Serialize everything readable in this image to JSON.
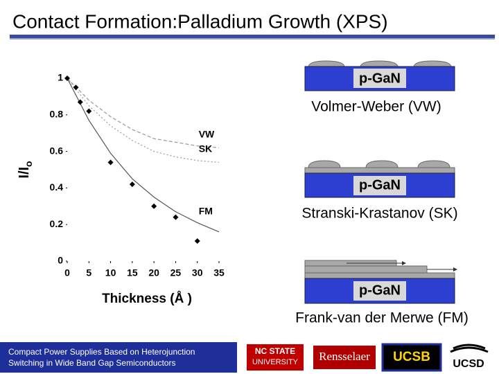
{
  "slide": {
    "title": "Contact Formation:Palladium Growth (XPS)",
    "diagrams": [
      {
        "substrate": "p-GaN",
        "caption": "Volmer-Weber (VW)"
      },
      {
        "substrate": "p-GaN",
        "caption": "Stranski-Krastanov (SK)"
      },
      {
        "substrate": "p-GaN",
        "caption": "Frank-van der Merwe (FM)"
      }
    ],
    "footer": {
      "project": [
        "Compact Power Supplies Based on Heterojunction",
        "Switching in Wide Band Gap Semiconductors"
      ],
      "logos": [
        "NC STATE",
        "UNIVERSITY",
        "Rensselaer",
        "UCSB",
        "UCSD"
      ]
    }
  },
  "chart_data": {
    "type": "scatter",
    "xlabel": "Thickness (Å )",
    "ylabel": "I/I",
    "ylabel_sub": "o",
    "x": [
      0,
      2,
      3,
      5,
      10,
      15,
      20,
      25,
      30
    ],
    "values": [
      1,
      0.95,
      0.87,
      0.82,
      0.54,
      0.42,
      0.3,
      0.24,
      0.11
    ],
    "color": "#000000",
    "curve_x": [
      0,
      5,
      10,
      15,
      20,
      25,
      30,
      35
    ],
    "series": [
      {
        "name": "VW",
        "color": "#999999",
        "style": "dashed",
        "values": [
          1,
          0.88,
          0.79,
          0.72,
          0.67,
          0.65,
          0.63,
          0.62
        ]
      },
      {
        "name": "SK",
        "color": "#999999",
        "style": "dotted",
        "values": [
          1,
          0.85,
          0.74,
          0.66,
          0.6,
          0.57,
          0.55,
          0.54
        ]
      },
      {
        "name": "FM",
        "color": "#555555",
        "style": "solid",
        "values": [
          1,
          0.77,
          0.59,
          0.45,
          0.35,
          0.27,
          0.21,
          0.16
        ]
      }
    ],
    "xlim": [
      0,
      35
    ],
    "xticks": [
      0,
      5,
      10,
      15,
      20,
      25,
      30,
      35
    ],
    "ylim": [
      0,
      1
    ],
    "yticks": [
      0,
      0.2,
      0.4,
      0.6,
      0.8,
      1
    ]
  }
}
